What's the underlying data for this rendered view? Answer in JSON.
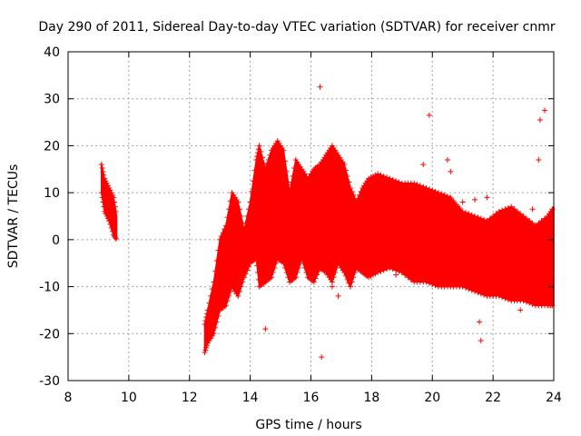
{
  "chart_data": {
    "type": "scatter",
    "title": "Day 290 of 2011, Sidereal Day-to-day VTEC variation (SDTVAR) for receiver cnmr",
    "xlabel": "GPS time / hours",
    "ylabel": "SDTVAR / TECUs",
    "xlim": [
      8,
      24
    ],
    "ylim": [
      -30,
      40
    ],
    "xticks": [
      8,
      10,
      12,
      14,
      16,
      18,
      20,
      22,
      24
    ],
    "yticks": [
      -30,
      -20,
      -10,
      0,
      10,
      20,
      30,
      40
    ],
    "grid": true,
    "marker": "+",
    "color": "#ff0000",
    "series": [
      {
        "name": "SDTVAR",
        "envelope": {
          "x": [
            9.1,
            9.2,
            9.35,
            9.5,
            9.6
          ],
          "upper": [
            16,
            13,
            11,
            9,
            5
          ],
          "lower": [
            10,
            6,
            4,
            1,
            0
          ]
        }
      },
      {
        "name": "SDTVAR",
        "envelope": {
          "x": [
            12.5,
            12.6,
            12.8,
            13.0,
            13.2,
            13.4,
            13.6,
            13.8,
            14.0,
            14.2,
            14.3,
            14.5,
            14.7,
            14.9,
            15.1,
            15.3,
            15.5,
            15.7,
            15.9,
            16.1,
            16.3,
            16.5,
            16.7,
            16.9,
            17.1,
            17.3,
            17.5,
            17.7,
            17.9,
            18.2,
            18.6,
            19.0,
            19.4,
            19.8,
            20.2,
            20.6,
            21.0,
            21.4,
            21.8,
            22.2,
            22.6,
            23.0,
            23.4,
            23.8,
            24.0
          ],
          "upper": [
            -18,
            -15,
            -9,
            0,
            3,
            10,
            8,
            2,
            8,
            17,
            20,
            15,
            19,
            21,
            19,
            10,
            17,
            15,
            13,
            15,
            16,
            18,
            20,
            18,
            16,
            11,
            8,
            11,
            13,
            14,
            13,
            12,
            12,
            11,
            10,
            9,
            6,
            5,
            4,
            6,
            7,
            5,
            3,
            5,
            7
          ],
          "lower": [
            -24,
            -22,
            -20,
            -15,
            -14,
            -10,
            -12,
            -8,
            -5,
            -4,
            -10,
            -9,
            -8,
            -4,
            -5,
            -9,
            -8,
            -4,
            -8,
            -9,
            -6,
            -7,
            -9,
            -5,
            -7,
            -10,
            -6,
            -7,
            -8,
            -7,
            -6,
            -7,
            -9,
            -9,
            -10,
            -10,
            -10,
            -11,
            -12,
            -12,
            -13,
            -13,
            -14,
            -14,
            -14
          ]
        }
      }
    ],
    "outliers": [
      {
        "x": 16.3,
        "y": 32.5
      },
      {
        "x": 16.35,
        "y": -25
      },
      {
        "x": 14.5,
        "y": -19
      },
      {
        "x": 16.7,
        "y": -10
      },
      {
        "x": 16.9,
        "y": -12
      },
      {
        "x": 18.8,
        "y": -7.5
      },
      {
        "x": 19.7,
        "y": 16
      },
      {
        "x": 19.9,
        "y": 26.5
      },
      {
        "x": 20.5,
        "y": 17
      },
      {
        "x": 20.6,
        "y": 14.5
      },
      {
        "x": 21.0,
        "y": 8
      },
      {
        "x": 21.4,
        "y": 8.5
      },
      {
        "x": 21.55,
        "y": -17.5
      },
      {
        "x": 21.6,
        "y": -21.5
      },
      {
        "x": 21.8,
        "y": 9
      },
      {
        "x": 22.0,
        "y": 4
      },
      {
        "x": 22.3,
        "y": 1
      },
      {
        "x": 22.9,
        "y": -15
      },
      {
        "x": 23.3,
        "y": 6.5
      },
      {
        "x": 23.5,
        "y": 17
      },
      {
        "x": 23.55,
        "y": 25.5
      },
      {
        "x": 23.7,
        "y": 27.5
      }
    ]
  }
}
